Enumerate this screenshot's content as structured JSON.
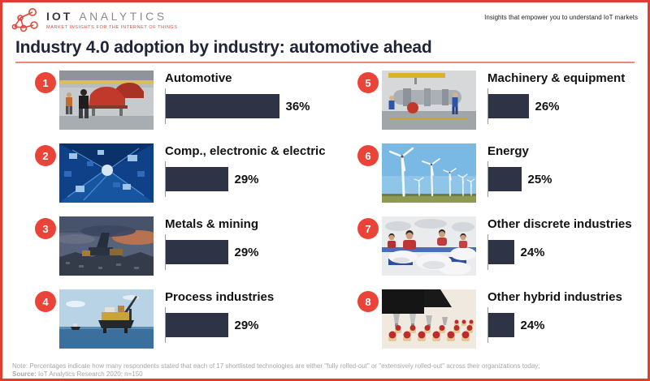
{
  "header": {
    "logo_primary": "IOT",
    "logo_secondary": "ANALYTICS",
    "logo_tagline": "MARKET INSIGHTS FOR THE INTERNET OF THINGS",
    "slogan": "Insights that empower you to understand IoT markets"
  },
  "title": "Industry 4.0 adoption by industry: automotive ahead",
  "items": [
    {
      "rank": "1",
      "label": "Automotive",
      "value": 36,
      "value_label": "36%",
      "image": "automotive-assembly-line-photo"
    },
    {
      "rank": "2",
      "label": "Comp., electronic & electric",
      "value": 29,
      "value_label": "29%",
      "image": "circuit-board-photo"
    },
    {
      "rank": "3",
      "label": "Metals & mining",
      "value": 29,
      "value_label": "29%",
      "image": "mining-quarry-photo"
    },
    {
      "rank": "4",
      "label": "Process industries",
      "value": 29,
      "value_label": "29%",
      "image": "offshore-platform-photo"
    },
    {
      "rank": "5",
      "label": "Machinery & equipment",
      "value": 26,
      "value_label": "26%",
      "image": "machinery-workshop-photo"
    },
    {
      "rank": "6",
      "label": "Energy",
      "value": 25,
      "value_label": "25%",
      "image": "wind-turbines-photo"
    },
    {
      "rank": "7",
      "label": "Other discrete industries",
      "value": 24,
      "value_label": "24%",
      "image": "textile-factory-photo"
    },
    {
      "rank": "8",
      "label": "Other hybrid industries",
      "value": 24,
      "value_label": "24%",
      "image": "food-production-photo"
    }
  ],
  "footer": {
    "note_label": "Note:",
    "note": "Percentages indicate how many respondents stated that each of 17 shortlisted technologies are either \"fully rolled-out\" or \"extensively rolled-out\" across their organizations today;",
    "source_label": "Source:",
    "source": "IoT Analytics Research 2020; n=150"
  },
  "colors": {
    "accent_red": "#ea4338",
    "bar_navy": "#2e3345",
    "title_navy": "#202637",
    "underline_red": "#f0867d",
    "border_red": "#e23b30",
    "footer_gray": "#a6a6a6"
  },
  "chart_data": {
    "type": "bar",
    "orientation": "horizontal",
    "title": "Industry 4.0 adoption by industry: automotive ahead",
    "categories": [
      "Automotive",
      "Comp., electronic & electric",
      "Metals & mining",
      "Process industries",
      "Machinery & equipment",
      "Energy",
      "Other discrete industries",
      "Other hybrid industries"
    ],
    "values": [
      36,
      29,
      29,
      29,
      26,
      25,
      24,
      24
    ],
    "unit": "%",
    "xlabel": "",
    "ylabel": "",
    "value_labels": [
      "36%",
      "29%",
      "29%",
      "29%",
      "26%",
      "25%",
      "24%",
      "24%"
    ],
    "legend": "none",
    "grid": "off",
    "note": "bars drawn on a truncated axis starting near 20%"
  }
}
